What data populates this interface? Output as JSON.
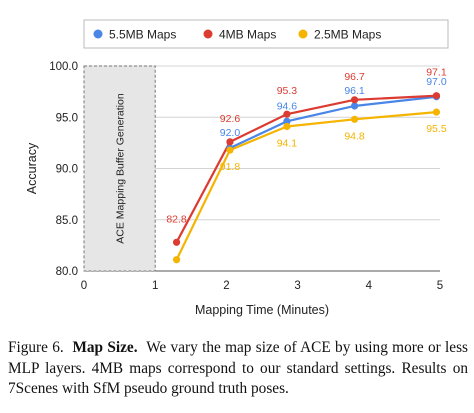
{
  "chart_data": {
    "type": "line",
    "xlabel": "Mapping Time (Minutes)",
    "ylabel": "Accuracy",
    "xlim": [
      0,
      5
    ],
    "ylim": [
      80,
      100
    ],
    "xticks": [
      0,
      1,
      2,
      3,
      4,
      5
    ],
    "yticks": [
      80.0,
      85.0,
      90.0,
      95.0,
      100.0
    ],
    "ytick_labels": [
      "80.0",
      "85.0",
      "90.0",
      "95.0",
      "100.0"
    ],
    "grid": "horizontal",
    "legend_position": "top",
    "shaded_region": {
      "x": [
        0,
        1
      ],
      "label": "ACE Mapping Buffer Generation"
    },
    "series": [
      {
        "name": "5.5MB Maps",
        "color": "#4a86e8",
        "x": [
          1.3,
          2.05,
          2.85,
          3.8,
          4.95
        ],
        "values": [
          null,
          92.0,
          94.6,
          96.1,
          97.0
        ],
        "labels": [
          "",
          "92.0",
          "94.6",
          "96.1",
          "97.0"
        ]
      },
      {
        "name": "4MB Maps",
        "color": "#dc3b32",
        "x": [
          1.3,
          2.05,
          2.85,
          3.8,
          4.95
        ],
        "values": [
          82.8,
          92.6,
          95.3,
          96.7,
          97.1
        ],
        "labels": [
          "82.8",
          "92.6",
          "95.3",
          "96.7",
          "97.1"
        ]
      },
      {
        "name": "2.5MB Maps",
        "color": "#f4b400",
        "x": [
          1.3,
          2.05,
          2.85,
          3.8,
          4.95
        ],
        "values": [
          81.1,
          91.8,
          94.1,
          94.8,
          95.5
        ],
        "labels": [
          "",
          "91.8",
          "94.1",
          "94.8",
          "95.5"
        ]
      }
    ]
  },
  "caption": {
    "figure_label": "Figure 6.",
    "title": "Map Size.",
    "text": "We vary the map size of ACE by using more or less MLP layers. 4MB maps correspond to our standard settings. Results on 7Scenes with SfM pseudo ground truth poses."
  }
}
